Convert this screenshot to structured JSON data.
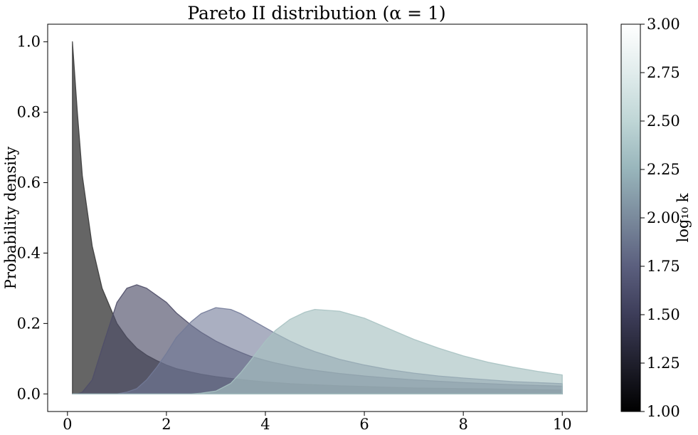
{
  "chart_data": {
    "type": "area",
    "title": "Pareto II distribution (α = 1)",
    "xlabel": "",
    "ylabel": "Probability density",
    "xlim": [
      -0.4,
      10.5
    ],
    "ylim": [
      -0.05,
      1.05
    ],
    "x_ticks": [
      0,
      2,
      4,
      6,
      8,
      10
    ],
    "y_ticks": [
      0.0,
      0.2,
      0.4,
      0.6,
      0.8,
      1.0
    ],
    "x_tick_labels": [
      "0",
      "2",
      "4",
      "6",
      "8",
      "10"
    ],
    "y_tick_labels": [
      "0.0",
      "0.2",
      "0.4",
      "0.6",
      "0.8",
      "1.0"
    ],
    "x": [
      0.1,
      0.2,
      0.3,
      0.5,
      0.7,
      1.0,
      1.2,
      1.4,
      1.6,
      1.8,
      2.0,
      2.2,
      2.5,
      2.7,
      3.0,
      3.3,
      3.5,
      3.7,
      4.0,
      4.2,
      4.5,
      4.8,
      5.0,
      5.5,
      6.0,
      6.5,
      7.0,
      7.5,
      8.0,
      8.5,
      9.0,
      9.5,
      10.0
    ],
    "series": [
      {
        "values": [
          1.0,
          0.8,
          0.62,
          0.42,
          0.3,
          0.2,
          0.16,
          0.13,
          0.11,
          0.095,
          0.082,
          0.072,
          0.062,
          0.056,
          0.049,
          0.044,
          0.041,
          0.038,
          0.034,
          0.032,
          0.029,
          0.027,
          0.026,
          0.023,
          0.021,
          0.019,
          0.017,
          0.016,
          0.015,
          0.014,
          0.013,
          0.012,
          0.011
        ],
        "color": "#3a3a3a",
        "opacity": 0.78
      },
      {
        "values": [
          0.0,
          0.0,
          0.005,
          0.04,
          0.13,
          0.26,
          0.3,
          0.31,
          0.3,
          0.28,
          0.26,
          0.23,
          0.195,
          0.175,
          0.15,
          0.13,
          0.118,
          0.107,
          0.095,
          0.088,
          0.079,
          0.071,
          0.067,
          0.058,
          0.051,
          0.045,
          0.04,
          0.036,
          0.032,
          0.029,
          0.026,
          0.024,
          0.022
        ],
        "color": "#4f4e68",
        "opacity": 0.65
      },
      {
        "values": [
          0.0,
          0.0,
          0.0,
          0.0,
          0.0,
          0.0,
          0.005,
          0.015,
          0.04,
          0.075,
          0.115,
          0.16,
          0.205,
          0.228,
          0.245,
          0.24,
          0.228,
          0.212,
          0.188,
          0.172,
          0.15,
          0.131,
          0.12,
          0.098,
          0.082,
          0.069,
          0.059,
          0.051,
          0.045,
          0.04,
          0.035,
          0.032,
          0.029
        ],
        "color": "#727a98",
        "opacity": 0.6
      },
      {
        "values": [
          0.0,
          0.0,
          0.0,
          0.0,
          0.0,
          0.0,
          0.0,
          0.0,
          0.0,
          0.0,
          0.0,
          0.0,
          0.0,
          0.002,
          0.008,
          0.03,
          0.06,
          0.095,
          0.15,
          0.18,
          0.212,
          0.232,
          0.24,
          0.235,
          0.215,
          0.185,
          0.155,
          0.13,
          0.108,
          0.09,
          0.076,
          0.064,
          0.054
        ],
        "color": "#a7c2c2",
        "opacity": 0.65
      }
    ],
    "colorbar": {
      "label": "log₁₀ k",
      "range": [
        1.0,
        3.0
      ],
      "ticks": [
        1.0,
        1.25,
        1.5,
        1.75,
        2.0,
        2.25,
        2.5,
        2.75,
        3.0
      ],
      "tick_labels": [
        "1.00",
        "1.25",
        "1.50",
        "1.75",
        "2.00",
        "2.25",
        "2.50",
        "2.75",
        "3.00"
      ],
      "colormap": "bone",
      "stops": [
        "#000000",
        "#1f1f2c",
        "#3d3d59",
        "#5b5f7e",
        "#7a8a9c",
        "#98b5bb",
        "#bfd6d6",
        "#e1ecec",
        "#ffffff"
      ]
    },
    "grid": false,
    "legend": "none"
  }
}
